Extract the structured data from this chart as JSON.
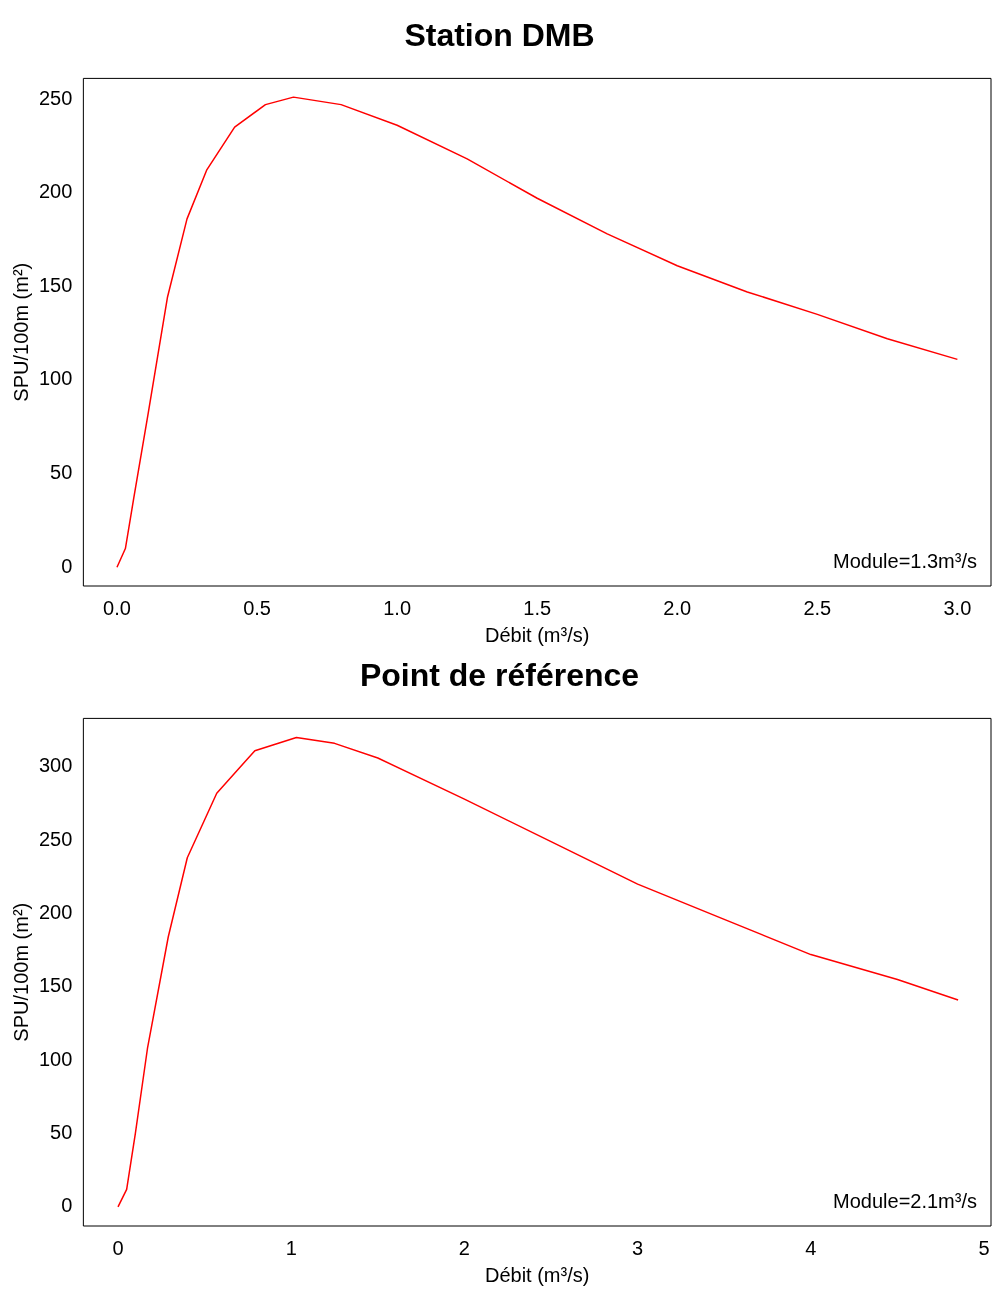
{
  "chart_data": [
    {
      "type": "line",
      "title": "Station DMB",
      "xlabel": "Débit (m³/s)",
      "ylabel": "SPU/100m (m²)",
      "annotations": [
        "Module=1.3m³/s"
      ],
      "xlim": [
        -0.12,
        3.12
      ],
      "ylim": [
        -10,
        261
      ],
      "xticks": [
        {
          "value": 0,
          "label": "0.0"
        },
        {
          "value": 0.5,
          "label": "0.5"
        },
        {
          "value": 1,
          "label": "1.0"
        },
        {
          "value": 1.5,
          "label": "1.5"
        },
        {
          "value": 2,
          "label": "2.0"
        },
        {
          "value": 2.5,
          "label": "2.5"
        },
        {
          "value": 3,
          "label": "3.0"
        }
      ],
      "yticks": [
        0,
        50,
        100,
        150,
        200,
        250
      ],
      "grid": false,
      "legend": false,
      "marker": "none",
      "line_style": "solid",
      "series": [
        {
          "color": "#ff0000",
          "x": [
            0,
            0.03,
            0.06,
            0.11,
            0.18,
            0.25,
            0.32,
            0.42,
            0.53,
            0.63,
            0.8,
            1.0,
            1.25,
            1.5,
            1.75,
            2.0,
            2.25,
            2.5,
            2.75,
            3.0
          ],
          "values": [
            0,
            10,
            37,
            81,
            144,
            186,
            212,
            235,
            247,
            251,
            247,
            236,
            218,
            197,
            178,
            161,
            147,
            135,
            122,
            111
          ]
        }
      ]
    },
    {
      "type": "line",
      "title": "Point de référence",
      "xlabel": "Débit (m³/s)",
      "ylabel": "SPU/100m (m²)",
      "annotations": [
        "Module=2.1m³/s"
      ],
      "xlim": [
        -0.2,
        5.04
      ],
      "ylim": [
        -13,
        333
      ],
      "xticks": [
        0,
        1,
        2,
        3,
        4,
        5
      ],
      "yticks": [
        0,
        50,
        100,
        150,
        200,
        250,
        300
      ],
      "grid": false,
      "legend": false,
      "marker": "none",
      "line_style": "solid",
      "series": [
        {
          "color": "#ff0000",
          "x": [
            0,
            0.05,
            0.1,
            0.17,
            0.29,
            0.4,
            0.57,
            0.79,
            1.03,
            1.25,
            1.5,
            2.0,
            2.5,
            3.0,
            3.5,
            4.0,
            4.5,
            4.85
          ],
          "values": [
            0,
            12,
            50,
            108,
            184,
            238,
            282,
            311,
            320,
            316,
            306,
            278,
            249,
            220,
            196,
            172,
            155,
            141
          ]
        }
      ]
    }
  ]
}
